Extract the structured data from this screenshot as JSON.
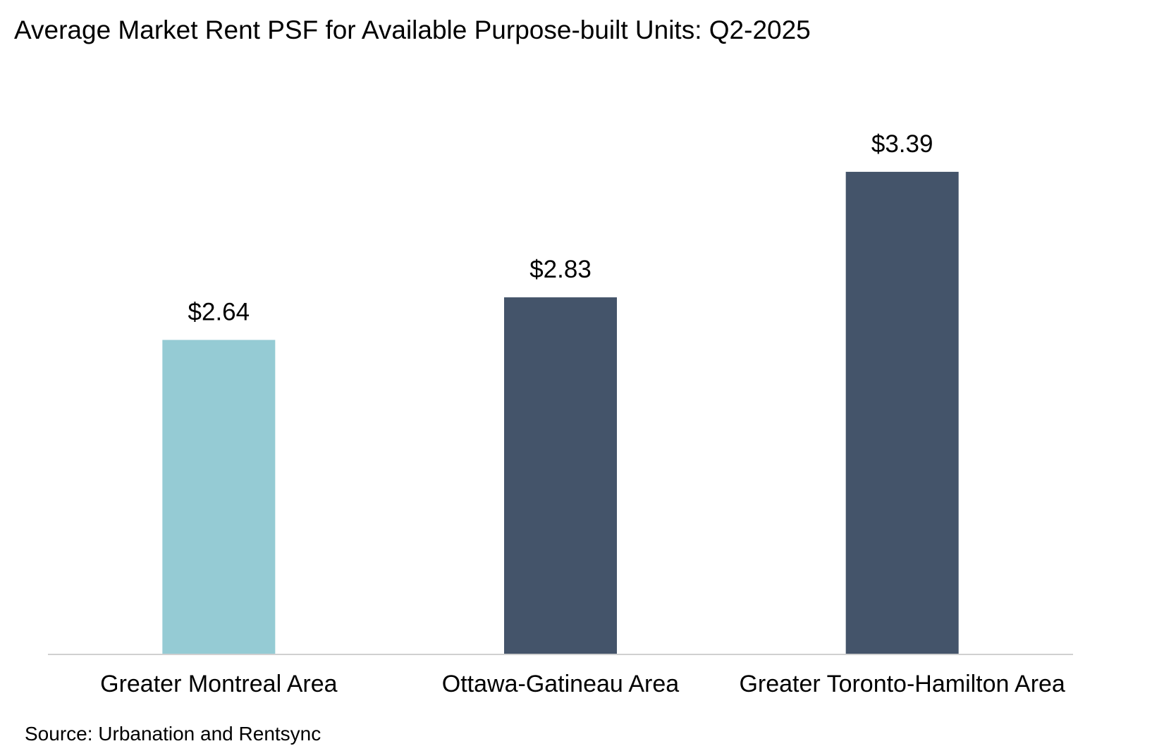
{
  "title": "Average Market Rent PSF for Available Purpose-built Units: Q2-2025",
  "source": "Source: Urbanation and Rentsync",
  "chart_data": {
    "type": "bar",
    "categories": [
      "Greater Montreal Area",
      "Ottawa-Gatineau Area",
      "Greater Toronto-Hamilton Area"
    ],
    "values": [
      2.64,
      2.83,
      3.39
    ],
    "data_labels": [
      "$2.64",
      "$2.83",
      "$3.39"
    ],
    "bar_colors": [
      "#95cbd4",
      "#44546a",
      "#44546a"
    ],
    "title": "Average Market Rent PSF for Available Purpose-built Units: Q2-2025",
    "xlabel": "",
    "ylabel": "",
    "ylim": [
      1.24,
      3.55
    ],
    "grid": false,
    "legend": "none",
    "axis_color": "#d0d0d0"
  }
}
